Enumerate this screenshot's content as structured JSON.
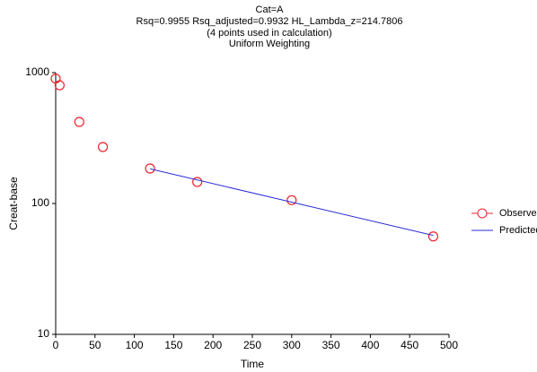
{
  "chart_data": {
    "type": "scatter",
    "title": "Cat=A",
    "subtitle": [
      "Rsq=0.9955  Rsq_adjusted=0.9932  HL_Lambda_z=214.7806",
      "(4 points used in calculation)",
      "Uniform Weighting"
    ],
    "x_label": "Time",
    "y_label": "Creat-base",
    "xlim": [
      0,
      500
    ],
    "xticks": [
      0,
      50,
      100,
      150,
      200,
      250,
      300,
      350,
      400,
      450,
      500
    ],
    "ylim": [
      10,
      1000
    ],
    "yticks": [
      10,
      100,
      1000
    ],
    "ylog": true,
    "legend": "right",
    "series": [
      {
        "name": "Observed",
        "type": "scatter",
        "color": "#e8262d",
        "x": [
          0,
          5,
          30,
          60,
          120,
          180,
          300,
          480
        ],
        "values": [
          900,
          800,
          420,
          270,
          185,
          146,
          106,
          56
        ]
      },
      {
        "name": "Predicted",
        "type": "line",
        "color": "#2b2bd6",
        "x": [
          120,
          480
        ],
        "values": [
          184,
          57
        ]
      }
    ]
  }
}
